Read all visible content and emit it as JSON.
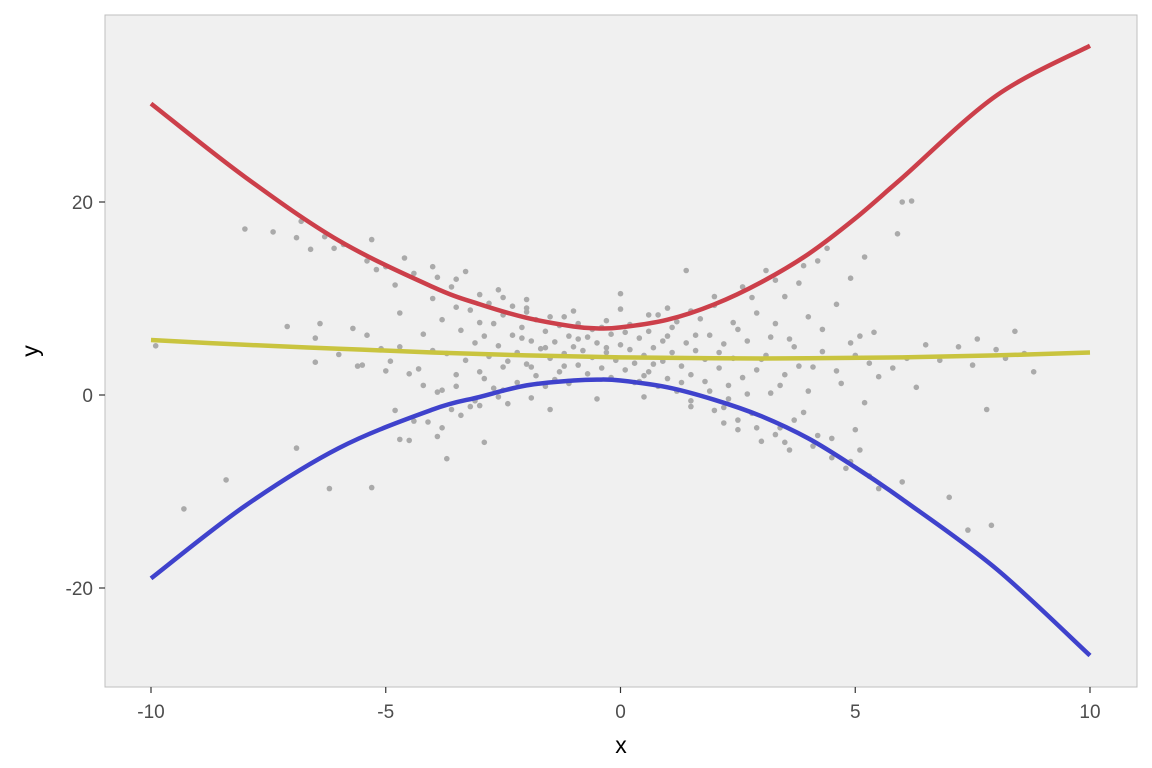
{
  "chart_data": {
    "type": "scatter",
    "title": "",
    "xlabel": "x",
    "ylabel": "y",
    "xlim": [
      -11,
      11
    ],
    "ylim": [
      -30,
      40
    ],
    "x_ticks": [
      {
        "value": -10,
        "label": "-10"
      },
      {
        "value": -5,
        "label": "-5"
      },
      {
        "value": 0,
        "label": "0"
      },
      {
        "value": 5,
        "label": "5"
      },
      {
        "value": 10,
        "label": "10"
      }
    ],
    "y_ticks": [
      {
        "value": -20,
        "label": "-20"
      },
      {
        "value": 0,
        "label": "0"
      },
      {
        "value": 20,
        "label": "20"
      }
    ],
    "grid": false,
    "legend": "none",
    "colors": {
      "panel_background": "#f0f0f0",
      "panel_border": "#bfbfbf",
      "points": "#aaaaaa",
      "upper_curve": "#cc3f4a",
      "middle_curve": "#c9c43f",
      "lower_curve": "#3f42cc"
    },
    "curves": [
      {
        "key": "upper",
        "color_key": "upper_curve",
        "points": [
          [
            -10,
            30.2
          ],
          [
            -8,
            22.6
          ],
          [
            -6,
            16.0
          ],
          [
            -4,
            11.2
          ],
          [
            -3,
            9.4
          ],
          [
            -2,
            8.0
          ],
          [
            -1,
            7.1
          ],
          [
            -0.5,
            6.9
          ],
          [
            0,
            7.0
          ],
          [
            1,
            7.8
          ],
          [
            2,
            9.4
          ],
          [
            3,
            11.7
          ],
          [
            4,
            14.6
          ],
          [
            5,
            18.3
          ],
          [
            6,
            22.5
          ],
          [
            8,
            31.0
          ],
          [
            10,
            36.2
          ]
        ]
      },
      {
        "key": "middle",
        "color_key": "middle_curve",
        "points": [
          [
            -10,
            5.7
          ],
          [
            -8,
            5.2
          ],
          [
            -6,
            4.8
          ],
          [
            -4,
            4.4
          ],
          [
            -2,
            4.1
          ],
          [
            0,
            3.9
          ],
          [
            2,
            3.8
          ],
          [
            4,
            3.8
          ],
          [
            6,
            3.9
          ],
          [
            8,
            4.1
          ],
          [
            10,
            4.4
          ]
        ]
      },
      {
        "key": "lower",
        "color_key": "lower_curve",
        "points": [
          [
            -10,
            -19.0
          ],
          [
            -8,
            -11.5
          ],
          [
            -6,
            -5.5
          ],
          [
            -4,
            -1.5
          ],
          [
            -3,
            -0.2
          ],
          [
            -2,
            1.0
          ],
          [
            -1,
            1.5
          ],
          [
            -0.5,
            1.6
          ],
          [
            0,
            1.5
          ],
          [
            1,
            0.8
          ],
          [
            2,
            -0.5
          ],
          [
            3,
            -2.2
          ],
          [
            4,
            -4.5
          ],
          [
            5,
            -7.5
          ],
          [
            6,
            -10.8
          ],
          [
            8,
            -18.0
          ],
          [
            10,
            -27.0
          ]
        ]
      }
    ],
    "scatter_points": [
      [
        -9.9,
        5.1
      ],
      [
        -9.3,
        -11.8
      ],
      [
        -8.4,
        -8.8
      ],
      [
        -8.0,
        17.2
      ],
      [
        -7.4,
        16.9
      ],
      [
        -7.1,
        7.1
      ],
      [
        -6.9,
        16.3
      ],
      [
        -6.9,
        -5.5
      ],
      [
        -6.8,
        18.0
      ],
      [
        -6.6,
        15.1
      ],
      [
        -6.5,
        5.9
      ],
      [
        -6.5,
        3.4
      ],
      [
        -6.4,
        7.4
      ],
      [
        -6.3,
        16.4
      ],
      [
        -6.2,
        -9.7
      ],
      [
        -6.1,
        15.2
      ],
      [
        -5.9,
        15.6
      ],
      [
        -5.7,
        6.9
      ],
      [
        -5.5,
        3.1
      ],
      [
        -5.4,
        13.9
      ],
      [
        -5.4,
        6.2
      ],
      [
        -5.3,
        16.1
      ],
      [
        -5.3,
        -9.6
      ],
      [
        -5.2,
        13.0
      ],
      [
        -5.1,
        4.8
      ],
      [
        -5.0,
        13.3
      ],
      [
        -5.0,
        2.5
      ],
      [
        -4.8,
        11.4
      ],
      [
        -4.7,
        8.5
      ],
      [
        -4.7,
        5.0
      ],
      [
        -4.7,
        -4.6
      ],
      [
        -4.6,
        14.2
      ],
      [
        -4.5,
        -4.7
      ],
      [
        -4.4,
        12.6
      ],
      [
        -4.3,
        2.7
      ],
      [
        -4.2,
        6.3
      ],
      [
        -4.1,
        -2.8
      ],
      [
        -4.0,
        10.0
      ],
      [
        -4.0,
        4.6
      ],
      [
        -3.9,
        12.2
      ],
      [
        -3.9,
        0.3
      ],
      [
        -3.8,
        7.8
      ],
      [
        -3.8,
        -3.4
      ],
      [
        -3.7,
        4.3
      ],
      [
        -3.7,
        -6.6
      ],
      [
        -3.6,
        11.2
      ],
      [
        -3.6,
        -1.5
      ],
      [
        -3.5,
        9.1
      ],
      [
        -3.5,
        2.1
      ],
      [
        -3.4,
        6.7
      ],
      [
        -3.4,
        -2.1
      ],
      [
        -3.3,
        12.8
      ],
      [
        -3.3,
        3.6
      ],
      [
        -3.2,
        8.8
      ],
      [
        -3.1,
        5.4
      ],
      [
        -3.1,
        -0.6
      ],
      [
        -3.0,
        10.4
      ],
      [
        -3.0,
        2.4
      ],
      [
        -2.9,
        6.1
      ],
      [
        -2.9,
        -4.9
      ],
      [
        -2.8,
        9.5
      ],
      [
        -2.8,
        4.0
      ],
      [
        -2.7,
        7.4
      ],
      [
        -2.7,
        0.7
      ],
      [
        -2.6,
        10.9
      ],
      [
        -2.6,
        5.1
      ],
      [
        -2.5,
        8.3
      ],
      [
        -2.5,
        2.9
      ],
      [
        -2.4,
        -0.9
      ],
      [
        -2.3,
        9.2
      ],
      [
        -2.3,
        6.2
      ],
      [
        -2.2,
        4.4
      ],
      [
        -2.2,
        1.3
      ],
      [
        -2.1,
        7.0
      ],
      [
        -2.0,
        8.6
      ],
      [
        -2.0,
        3.2
      ],
      [
        -1.9,
        5.6
      ],
      [
        -1.9,
        -0.3
      ],
      [
        -1.8,
        7.8
      ],
      [
        -1.8,
        2.0
      ],
      [
        -1.7,
        4.8
      ],
      [
        -1.6,
        6.6
      ],
      [
        -1.6,
        0.9
      ],
      [
        -1.5,
        8.1
      ],
      [
        -1.5,
        3.8
      ],
      [
        -1.4,
        5.5
      ],
      [
        -1.3,
        2.4
      ],
      [
        -1.3,
        7.2
      ],
      [
        -1.2,
        4.3
      ],
      [
        -1.1,
        6.1
      ],
      [
        -1.1,
        1.2
      ],
      [
        -1.0,
        5.0
      ],
      [
        -0.9,
        3.1
      ],
      [
        -0.9,
        7.4
      ],
      [
        -0.8,
        4.6
      ],
      [
        -0.7,
        2.2
      ],
      [
        -0.7,
        6.0
      ],
      [
        -0.6,
        3.9
      ],
      [
        -0.5,
        5.4
      ],
      [
        -0.4,
        2.8
      ],
      [
        -0.4,
        7.0
      ],
      [
        -0.3,
        4.4
      ],
      [
        -0.2,
        6.3
      ],
      [
        -0.2,
        1.8
      ],
      [
        -0.1,
        3.6
      ],
      [
        0.0,
        5.2
      ],
      [
        0.0,
        10.5
      ],
      [
        0.1,
        2.6
      ],
      [
        0.2,
        4.7
      ],
      [
        0.2,
        7.3
      ],
      [
        0.3,
        3.3
      ],
      [
        0.4,
        5.9
      ],
      [
        0.4,
        1.4
      ],
      [
        0.5,
        4.1
      ],
      [
        0.6,
        6.6
      ],
      [
        0.6,
        2.4
      ],
      [
        0.7,
        4.9
      ],
      [
        0.8,
        8.3
      ],
      [
        0.8,
        0.9
      ],
      [
        0.9,
        3.5
      ],
      [
        1.0,
        6.1
      ],
      [
        1.0,
        1.7
      ],
      [
        1.1,
        4.4
      ],
      [
        1.2,
        7.6
      ],
      [
        1.2,
        0.4
      ],
      [
        1.3,
        3.0
      ],
      [
        1.4,
        5.4
      ],
      [
        1.4,
        12.9
      ],
      [
        1.5,
        2.1
      ],
      [
        1.5,
        -0.6
      ],
      [
        1.6,
        4.6
      ],
      [
        1.7,
        7.9
      ],
      [
        1.8,
        1.4
      ],
      [
        1.8,
        3.7
      ],
      [
        1.9,
        6.2
      ],
      [
        2.0,
        -1.6
      ],
      [
        2.0,
        9.3
      ],
      [
        2.1,
        2.8
      ],
      [
        2.2,
        5.3
      ],
      [
        2.2,
        -2.9
      ],
      [
        2.3,
        1.0
      ],
      [
        2.4,
        7.5
      ],
      [
        2.4,
        3.8
      ],
      [
        2.5,
        -3.6
      ],
      [
        2.6,
        11.2
      ],
      [
        2.6,
        1.8
      ],
      [
        2.7,
        5.6
      ],
      [
        2.8,
        -1.9
      ],
      [
        2.9,
        8.5
      ],
      [
        2.9,
        2.6
      ],
      [
        3.0,
        -4.8
      ],
      [
        3.1,
        12.9
      ],
      [
        3.1,
        4.1
      ],
      [
        3.2,
        0.2
      ],
      [
        3.3,
        7.4
      ],
      [
        3.4,
        -3.4
      ],
      [
        3.5,
        10.2
      ],
      [
        3.5,
        2.1
      ],
      [
        3.6,
        -5.7
      ],
      [
        3.7,
        5.0
      ],
      [
        3.8,
        11.6
      ],
      [
        3.9,
        -1.8
      ],
      [
        4.0,
        8.1
      ],
      [
        4.1,
        2.9
      ],
      [
        4.2,
        -4.2
      ],
      [
        4.2,
        13.9
      ],
      [
        4.3,
        4.5
      ],
      [
        4.4,
        15.2
      ],
      [
        4.5,
        -6.5
      ],
      [
        4.6,
        9.4
      ],
      [
        4.7,
        1.2
      ],
      [
        4.8,
        -7.6
      ],
      [
        4.9,
        12.1
      ],
      [
        5.0,
        4.1
      ],
      [
        5.0,
        -3.6
      ],
      [
        5.1,
        6.1
      ],
      [
        5.2,
        -0.8
      ],
      [
        5.2,
        14.3
      ],
      [
        5.3,
        -8.4
      ],
      [
        5.4,
        6.5
      ],
      [
        5.5,
        1.9
      ],
      [
        5.5,
        -9.7
      ],
      [
        5.8,
        2.8
      ],
      [
        5.9,
        16.7
      ],
      [
        6.0,
        20.0
      ],
      [
        6.0,
        -9.0
      ],
      [
        6.1,
        3.8
      ],
      [
        6.2,
        20.1
      ],
      [
        6.3,
        0.8
      ],
      [
        6.5,
        5.2
      ],
      [
        6.8,
        3.6
      ],
      [
        7.0,
        -10.6
      ],
      [
        7.2,
        5.0
      ],
      [
        7.4,
        -14.0
      ],
      [
        7.5,
        3.1
      ],
      [
        7.6,
        5.8
      ],
      [
        7.8,
        -1.5
      ],
      [
        7.9,
        -13.5
      ],
      [
        8.0,
        4.7
      ],
      [
        8.2,
        3.8
      ],
      [
        8.4,
        6.6
      ],
      [
        8.6,
        4.3
      ],
      [
        8.8,
        2.4
      ],
      [
        -6.0,
        4.2
      ],
      [
        -5.6,
        3.0
      ],
      [
        -4.9,
        3.5
      ],
      [
        -4.5,
        2.2
      ],
      [
        -4.2,
        1.0
      ],
      [
        -3.8,
        0.5
      ],
      [
        -3.2,
        -1.2
      ],
      [
        -2.9,
        1.7
      ],
      [
        -2.6,
        -0.2
      ],
      [
        -2.4,
        3.5
      ],
      [
        -2.1,
        5.9
      ],
      [
        -1.9,
        2.9
      ],
      [
        -1.6,
        4.9
      ],
      [
        -1.4,
        1.6
      ],
      [
        -1.2,
        3.0
      ],
      [
        -0.9,
        5.8
      ],
      [
        -0.6,
        6.8
      ],
      [
        -0.3,
        4.9
      ],
      [
        0.1,
        6.5
      ],
      [
        0.3,
        1.3
      ],
      [
        0.5,
        2.0
      ],
      [
        0.7,
        3.2
      ],
      [
        0.9,
        5.6
      ],
      [
        1.1,
        7.0
      ],
      [
        1.3,
        1.3
      ],
      [
        1.6,
        6.2
      ],
      [
        1.9,
        0.4
      ],
      [
        2.1,
        4.4
      ],
      [
        2.3,
        -0.4
      ],
      [
        2.5,
        6.8
      ],
      [
        2.7,
        0.1
      ],
      [
        3.0,
        3.7
      ],
      [
        3.2,
        6.0
      ],
      [
        3.4,
        1.0
      ],
      [
        3.6,
        5.8
      ],
      [
        3.8,
        3.0
      ],
      [
        4.0,
        0.4
      ],
      [
        4.3,
        6.8
      ],
      [
        4.6,
        2.5
      ],
      [
        4.9,
        5.4
      ],
      [
        5.3,
        3.3
      ],
      [
        -3.0,
        7.5
      ],
      [
        -2.0,
        9.9
      ],
      [
        -1.0,
        8.7
      ],
      [
        0.0,
        8.9
      ],
      [
        1.0,
        9.0
      ],
      [
        2.0,
        10.2
      ],
      [
        -1.5,
        -1.5
      ],
      [
        -0.5,
        -0.4
      ],
      [
        0.5,
        -0.2
      ],
      [
        1.5,
        -1.2
      ],
      [
        2.5,
        -2.6
      ],
      [
        3.5,
        -4.9
      ],
      [
        -4.0,
        13.3
      ],
      [
        -3.5,
        12.0
      ],
      [
        -2.5,
        10.1
      ],
      [
        -2.0,
        9.0
      ],
      [
        -1.2,
        8.1
      ],
      [
        -0.3,
        7.7
      ],
      [
        0.6,
        8.3
      ],
      [
        1.5,
        8.7
      ],
      [
        2.8,
        10.1
      ],
      [
        3.3,
        11.9
      ],
      [
        3.9,
        13.4
      ],
      [
        -4.8,
        -1.6
      ],
      [
        -4.4,
        -2.7
      ],
      [
        -3.9,
        -4.3
      ],
      [
        -3.5,
        0.9
      ],
      [
        -3.0,
        -1.1
      ],
      [
        -2.5,
        0.5
      ],
      [
        2.2,
        -1.3
      ],
      [
        2.9,
        -3.4
      ],
      [
        3.3,
        -4.1
      ],
      [
        3.7,
        -2.6
      ],
      [
        4.1,
        -5.3
      ],
      [
        4.5,
        -4.5
      ],
      [
        4.9,
        -6.9
      ],
      [
        5.1,
        -5.7
      ]
    ]
  }
}
